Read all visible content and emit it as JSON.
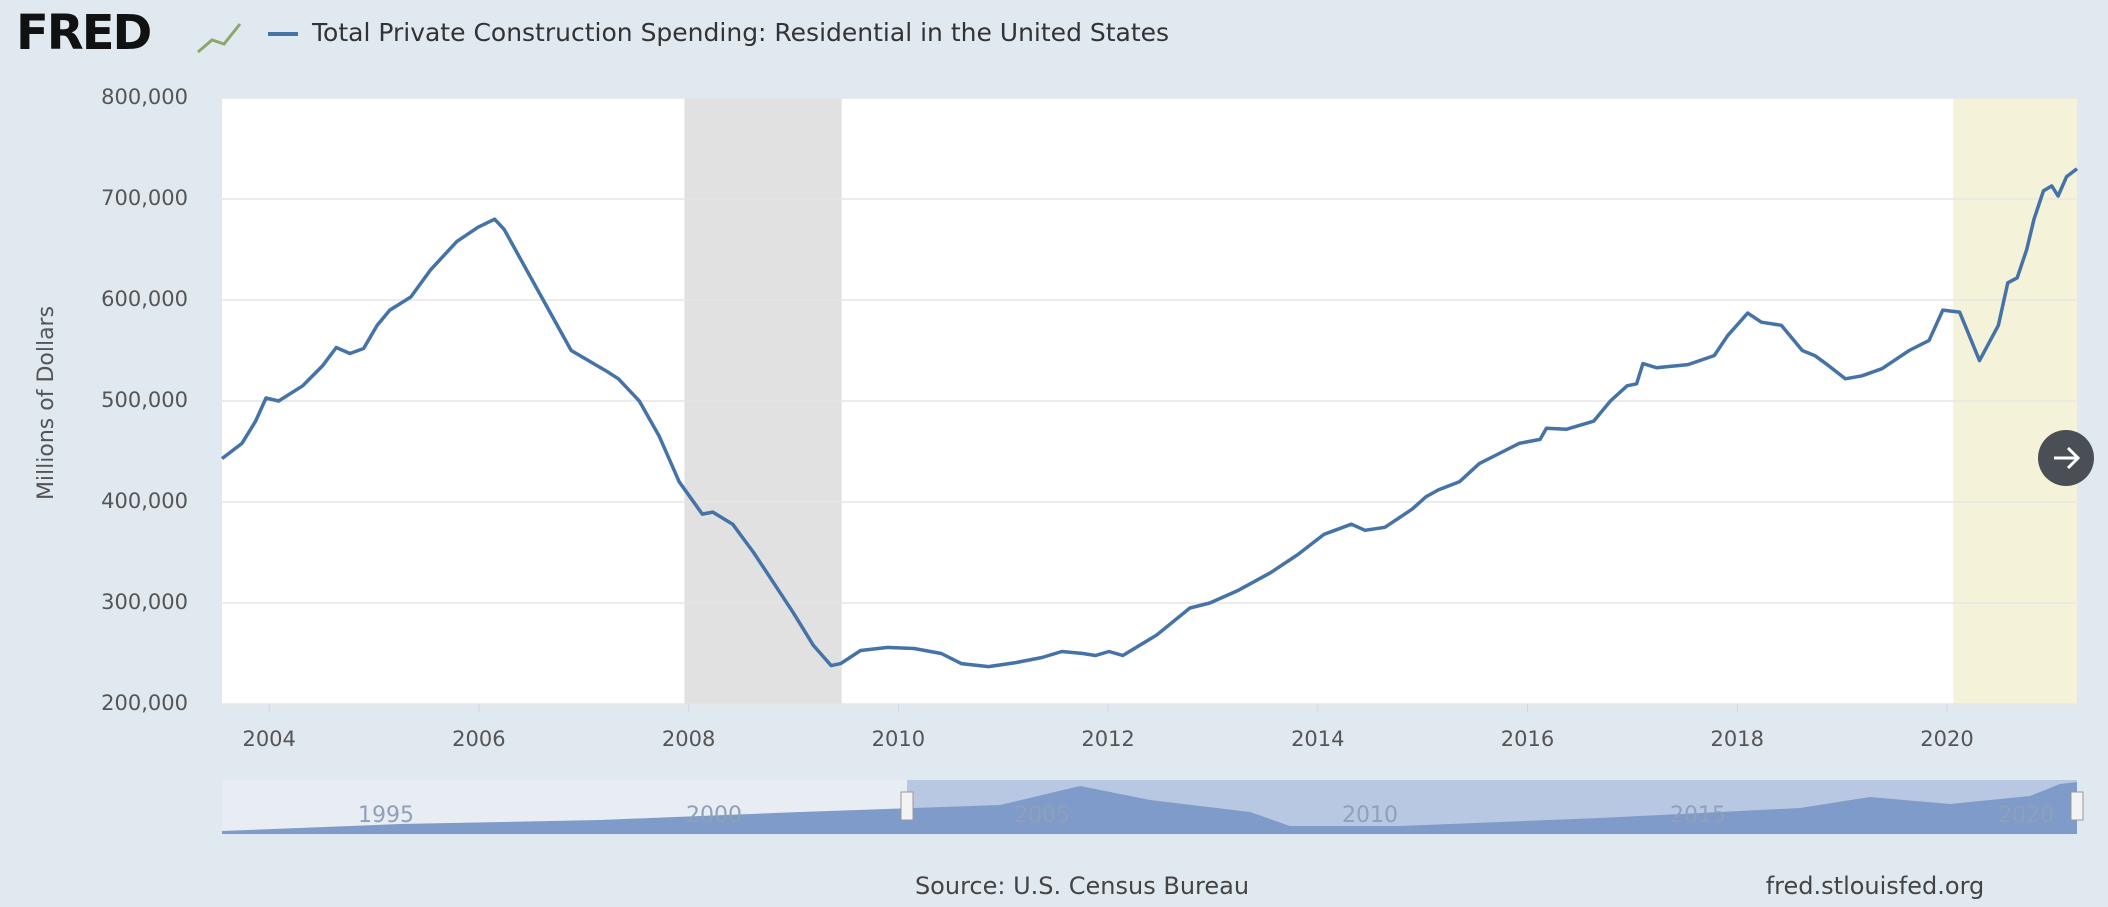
{
  "chart_data": {
    "type": "line",
    "logo": "FRED",
    "title": "Total Private Construction Spending: Residential in the United States",
    "ylabel": "Millions of Dollars",
    "source": "Source: U.S. Census Bureau",
    "site": "fred.stlouisfed.org",
    "navigator_labels": [
      "1995",
      "2000",
      "2005",
      "2010",
      "2015",
      "2020"
    ],
    "xlim": [
      2003.55,
      2021.24
    ],
    "xticks": [
      2004,
      2006,
      2008,
      2010,
      2012,
      2014,
      2016,
      2018,
      2020
    ],
    "ylim": [
      200000,
      800000
    ],
    "yticks": [
      {
        "value": 200000,
        "label": "200,000"
      },
      {
        "value": 300000,
        "label": "300,000"
      },
      {
        "value": 400000,
        "label": "400,000"
      },
      {
        "value": 500000,
        "label": "500,000"
      },
      {
        "value": 600000,
        "label": "600,000"
      },
      {
        "value": 700000,
        "label": "700,000"
      },
      {
        "value": 800000,
        "label": "800,000"
      }
    ],
    "grid": true,
    "shading": [
      {
        "x": [
          2007.96,
          2009.46
        ],
        "color": "#e1e1e1"
      },
      {
        "x": [
          2020.06,
          2021.24
        ],
        "color": "#f4f2d9"
      }
    ],
    "series": [
      {
        "name": "Total Private Construction Spending: Residential in the United States",
        "color": "#4572a7",
        "x": [
          2003.55,
          2003.74,
          2003.87,
          2003.97,
          2004.09,
          2004.32,
          2004.51,
          2004.64,
          2004.77,
          2004.9,
          2005.03,
          2005.15,
          2005.35,
          2005.54,
          2005.79,
          2005.99,
          2006.15,
          2006.24,
          2006.56,
          2006.88,
          2007.21,
          2007.33,
          2007.53,
          2007.72,
          2007.91,
          2008.13,
          2008.23,
          2008.42,
          2008.62,
          2008.81,
          2009.0,
          2009.19,
          2009.36,
          2009.45,
          2009.64,
          2009.9,
          2010.15,
          2010.41,
          2010.6,
          2010.86,
          2011.12,
          2011.37,
          2011.56,
          2011.76,
          2011.88,
          2012.01,
          2012.14,
          2012.46,
          2012.78,
          2012.97,
          2013.23,
          2013.55,
          2013.81,
          2014.06,
          2014.32,
          2014.45,
          2014.64,
          2014.9,
          2015.03,
          2015.15,
          2015.35,
          2015.54,
          2015.73,
          2015.92,
          2016.12,
          2016.18,
          2016.37,
          2016.63,
          2016.79,
          2016.95,
          2017.04,
          2017.1,
          2017.23,
          2017.53,
          2017.78,
          2017.91,
          2018.1,
          2018.23,
          2018.42,
          2018.62,
          2018.74,
          2018.87,
          2019.03,
          2019.19,
          2019.38,
          2019.64,
          2019.83,
          2019.96,
          2020.12,
          2020.31,
          2020.49,
          2020.58,
          2020.67,
          2020.76,
          2020.83,
          2020.92,
          2021.0,
          2021.06,
          2021.14,
          2021.24
        ],
        "values": [
          443000,
          458000,
          480000,
          503000,
          500000,
          515000,
          535000,
          553000,
          547000,
          552000,
          575000,
          590000,
          603000,
          630000,
          658000,
          672000,
          680000,
          670000,
          610000,
          550000,
          530000,
          522000,
          500000,
          465000,
          420000,
          388000,
          390000,
          378000,
          350000,
          320000,
          290000,
          258000,
          238000,
          240000,
          253000,
          256000,
          255000,
          250000,
          240000,
          237000,
          241000,
          246000,
          252000,
          250000,
          248000,
          252000,
          248000,
          268000,
          295000,
          300000,
          312000,
          330000,
          348000,
          368000,
          378000,
          372000,
          375000,
          393000,
          405000,
          412000,
          420000,
          438000,
          448000,
          458000,
          462000,
          473000,
          472000,
          480000,
          500000,
          515000,
          517000,
          537000,
          533000,
          536000,
          545000,
          565000,
          587000,
          578000,
          575000,
          550000,
          545000,
          535000,
          522000,
          525000,
          532000,
          550000,
          560000,
          590000,
          588000,
          540000,
          575000,
          617000,
          622000,
          650000,
          680000,
          708000,
          713000,
          703000,
          722000,
          730000
        ]
      }
    ]
  }
}
